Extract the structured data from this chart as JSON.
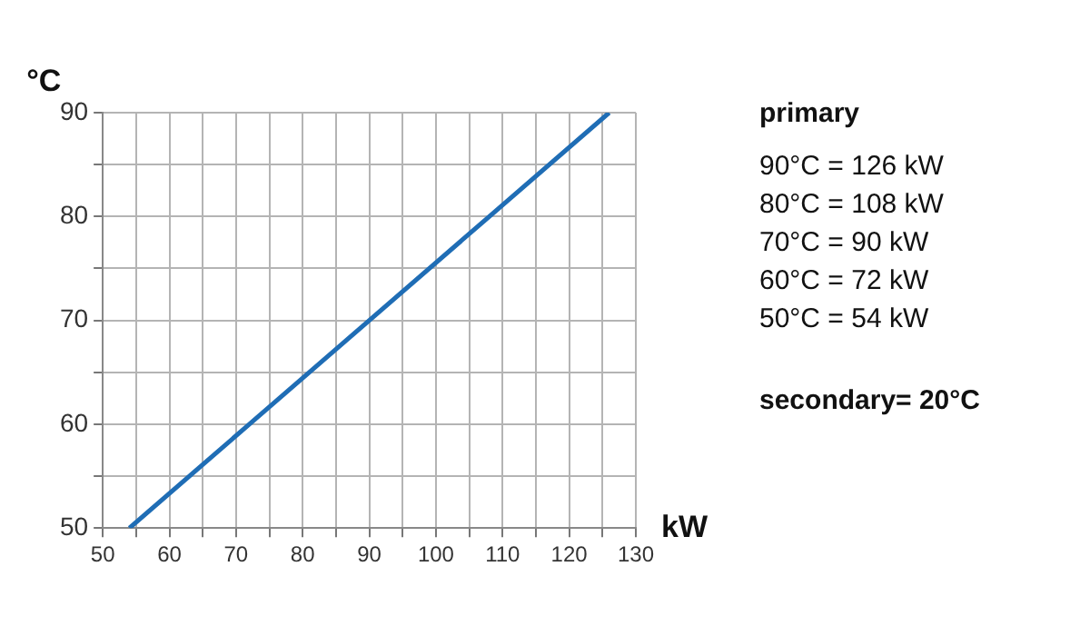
{
  "chart_data": {
    "type": "line",
    "xlabel": "kW",
    "ylabel": "°C",
    "x": [
      54,
      72,
      90,
      108,
      126
    ],
    "series": [
      {
        "color": "#1f6db5",
        "values": [
          50,
          60,
          70,
          80,
          90
        ]
      }
    ],
    "xlim": [
      50,
      130
    ],
    "xticks": [
      50,
      {
        "value": 55,
        "label": null
      },
      60,
      {
        "value": 65,
        "label": null
      },
      70,
      {
        "value": 75,
        "label": null
      },
      80,
      {
        "value": 85,
        "label": null
      },
      90,
      {
        "value": 95,
        "label": null
      },
      100,
      {
        "value": 105,
        "label": null
      },
      110,
      {
        "value": 115,
        "label": null
      },
      120,
      {
        "value": 125,
        "label": null
      },
      130
    ],
    "ylim": [
      50,
      90
    ],
    "yticks": [
      50,
      {
        "value": 55,
        "label": null
      },
      60,
      {
        "value": 65,
        "label": null
      },
      70,
      {
        "value": 75,
        "label": null
      },
      80,
      {
        "value": 85,
        "label": null
      },
      90
    ],
    "grid": true,
    "marker": "none",
    "line_style": "solid",
    "legend": false,
    "annotations": [
      "primary",
      "90°C = 126 kW",
      "80°C = 108 kW",
      "70°C = 90 kW",
      "60°C = 72 kW",
      "50°C = 54 kW",
      "secondary= 20°C"
    ]
  }
}
